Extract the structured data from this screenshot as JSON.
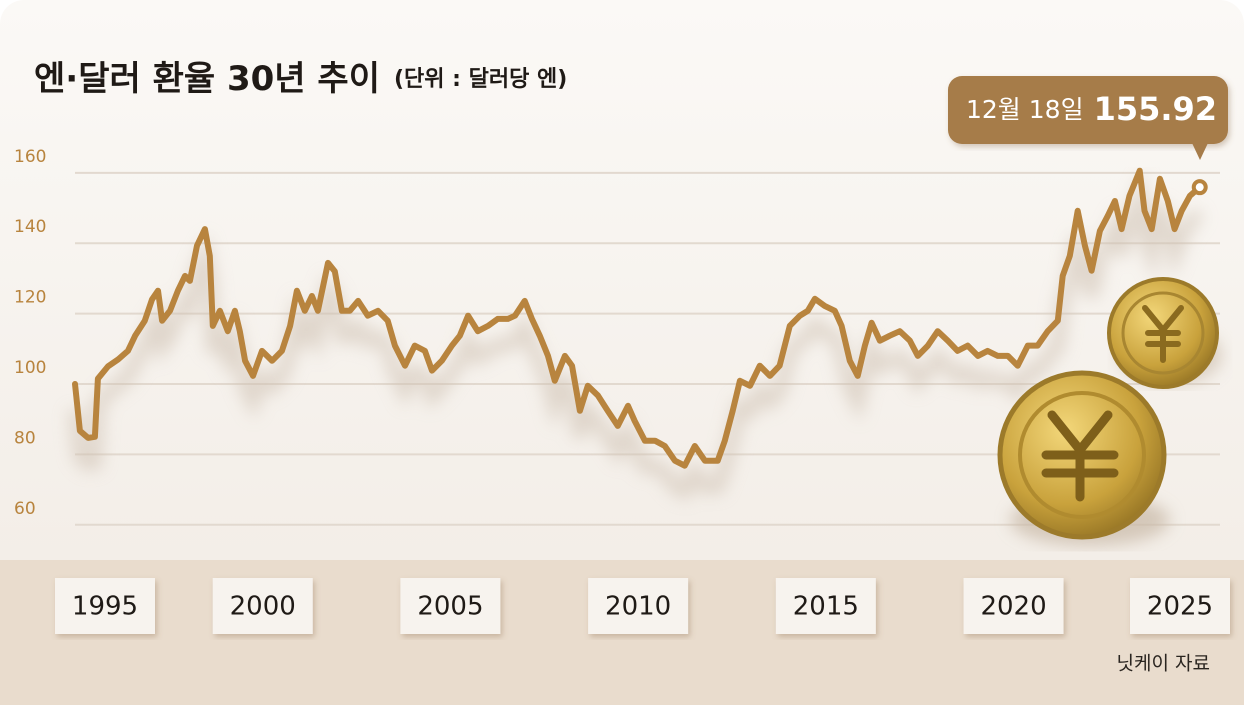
{
  "chart_data": {
    "type": "line",
    "title": "엔·달러 환율 30년 추이",
    "subtitle": "(단위 : 달러당 엔)",
    "annotation": "12월 18일",
    "source": "닛케이 자료",
    "color": "#b8843e",
    "grid": true,
    "xlim": [
      1994.8,
      2025.5
    ],
    "ylim": [
      50,
      166
    ],
    "xticks": [
      1995,
      2000,
      2005,
      2010,
      2015,
      2020,
      2025
    ],
    "yticks": [
      60,
      80,
      100,
      120,
      140,
      160
    ],
    "x": [
      1995,
      1995.13,
      1995.35,
      1995.53,
      1995.61,
      1995.88,
      1996.15,
      1996.41,
      1996.6,
      1996.86,
      1997.05,
      1997.21,
      1997.32,
      1997.53,
      1997.74,
      1997.93,
      1998.06,
      1998.25,
      1998.46,
      1998.59,
      1998.67,
      1998.86,
      1999.07,
      1999.26,
      1999.39,
      1999.53,
      1999.74,
      1999.98,
      2000.25,
      2000.51,
      2000.73,
      2000.91,
      2001.12,
      2001.31,
      2001.47,
      2001.74,
      2001.92,
      2002.11,
      2002.32,
      2002.54,
      2002.8,
      2003.07,
      2003.33,
      2003.52,
      2003.79,
      2004.05,
      2004.32,
      2004.51,
      2004.77,
      2005.04,
      2005.25,
      2005.47,
      2005.73,
      2006,
      2006.26,
      2006.53,
      2006.72,
      2006.98,
      2007.17,
      2007.38,
      2007.6,
      2007.78,
      2008.05,
      2008.24,
      2008.45,
      2008.66,
      2008.93,
      2009.19,
      2009.46,
      2009.73,
      2009.91,
      2010.18,
      2010.45,
      2010.71,
      2010.98,
      2011.24,
      2011.51,
      2011.78,
      2012.12,
      2012.31,
      2012.52,
      2012.71,
      2012.98,
      2013.24,
      2013.51,
      2013.77,
      2014.04,
      2014.31,
      2014.52,
      2014.71,
      2014.97,
      2015.24,
      2015.42,
      2015.64,
      2015.85,
      2016.04,
      2016.22,
      2016.44,
      2016.7,
      2016.97,
      2017.24,
      2017.45,
      2017.72,
      2017.98,
      2018.25,
      2018.51,
      2018.78,
      2019.05,
      2019.31,
      2019.58,
      2019.85,
      2020.11,
      2020.38,
      2020.64,
      2020.91,
      2021.18,
      2021.31,
      2021.5,
      2021.71,
      2021.9,
      2022.08,
      2022.3,
      2022.51,
      2022.7,
      2022.88,
      2023.09,
      2023.36,
      2023.49,
      2023.68,
      2023.9,
      2024.11,
      2024.29,
      2024.48,
      2024.7,
      2024.96
    ],
    "values": [
      100,
      86.7,
      84.7,
      85,
      101.5,
      105,
      107,
      109.4,
      113.7,
      118,
      124,
      126.5,
      118,
      120.8,
      126.5,
      130.7,
      129.3,
      139.3,
      144,
      136.4,
      116.5,
      120.8,
      115,
      120.8,
      115,
      106.6,
      102.3,
      109.4,
      106.6,
      109.4,
      116.5,
      126.5,
      120.8,
      125,
      120.8,
      134.4,
      132,
      120.8,
      120.8,
      123.6,
      119.4,
      120.8,
      118,
      110.9,
      105.2,
      110.9,
      109.4,
      103.8,
      106.6,
      110.9,
      113.7,
      119.4,
      115,
      116.5,
      118.5,
      118.5,
      119.4,
      123.6,
      118.5,
      113.7,
      108,
      100.9,
      108,
      105.2,
      92.4,
      99.5,
      96.7,
      92.4,
      88.1,
      93.8,
      89.5,
      83.9,
      83.9,
      82.4,
      78.2,
      76.8,
      82.4,
      78.2,
      78.2,
      83.9,
      92.4,
      100.9,
      99.5,
      105.2,
      102.3,
      105.2,
      116.5,
      119.4,
      120.8,
      124.2,
      122.2,
      120.8,
      116.5,
      106.6,
      102.3,
      110.9,
      117.4,
      112.3,
      113.7,
      115,
      112.3,
      108,
      110.9,
      115,
      112.3,
      109.4,
      110.9,
      108,
      109.4,
      108,
      108,
      105.2,
      110.9,
      110.9,
      115,
      118,
      130.7,
      136.4,
      149.2,
      139.3,
      132.2,
      143.5,
      147.8,
      152,
      144,
      153.5,
      160.6,
      149.2,
      144,
      158.3,
      152,
      144,
      149.2,
      153.5,
      155.92
    ]
  }
}
